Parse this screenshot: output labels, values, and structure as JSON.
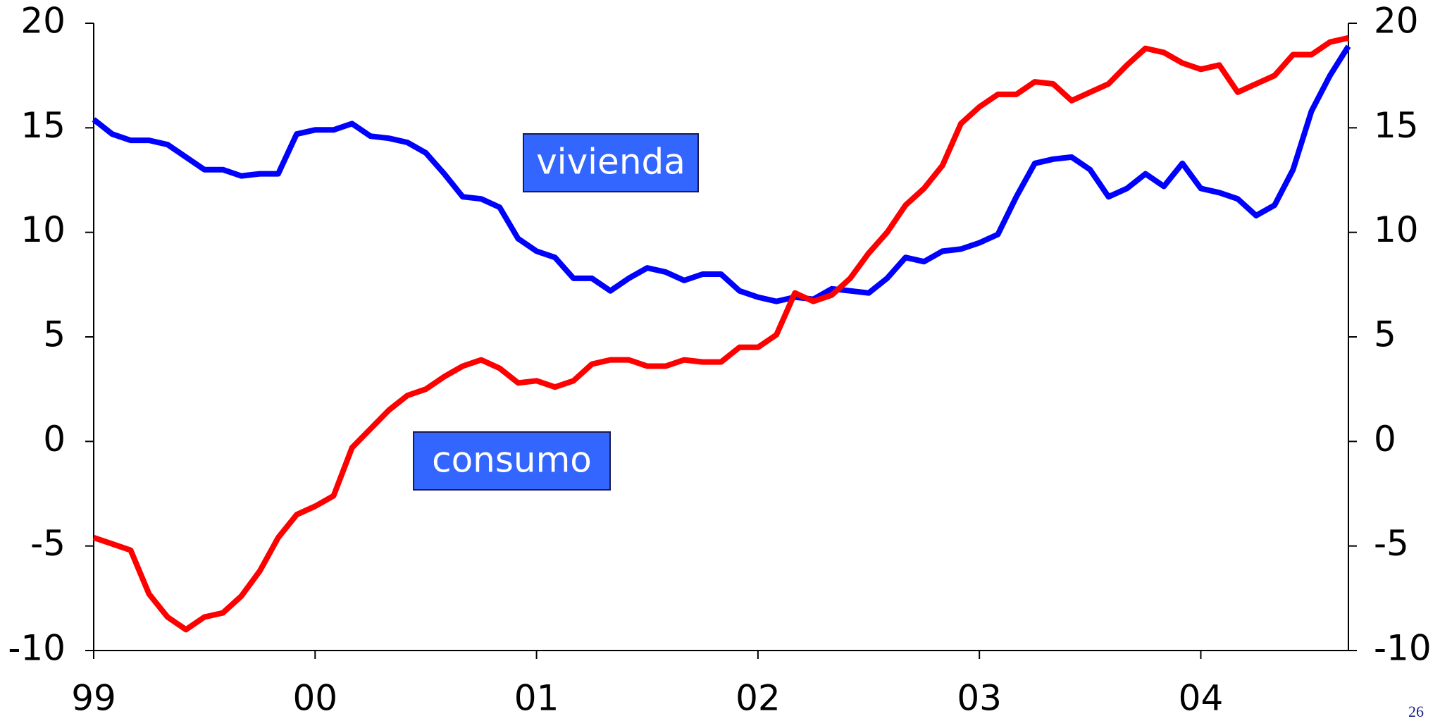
{
  "chart_data": {
    "type": "line",
    "categories": [
      "99",
      null,
      null,
      null,
      null,
      null,
      null,
      null,
      null,
      null,
      null,
      null,
      "00",
      null,
      null,
      null,
      null,
      null,
      null,
      null,
      null,
      null,
      null,
      null,
      "01",
      null,
      null,
      null,
      null,
      null,
      null,
      null,
      null,
      null,
      null,
      null,
      "02",
      null,
      null,
      null,
      null,
      null,
      null,
      null,
      null,
      null,
      null,
      null,
      "03",
      null,
      null,
      null,
      null,
      null,
      null,
      null,
      null,
      null,
      null,
      null,
      "04",
      null,
      null,
      null,
      null,
      null,
      null,
      null,
      null
    ],
    "series": [
      {
        "name": "vivienda",
        "color": "#0000ff",
        "values": [
          15.4,
          14.7,
          14.4,
          14.4,
          14.2,
          13.6,
          13.0,
          13.0,
          12.7,
          12.8,
          12.8,
          14.7,
          14.9,
          14.9,
          15.2,
          14.6,
          14.5,
          14.3,
          13.8,
          12.8,
          11.7,
          11.6,
          11.2,
          9.7,
          9.1,
          8.8,
          7.8,
          7.8,
          7.2,
          7.8,
          8.3,
          8.1,
          7.7,
          8.0,
          8.0,
          7.2,
          6.9,
          6.7,
          6.9,
          6.8,
          7.3,
          7.2,
          7.1,
          7.8,
          8.8,
          8.6,
          9.1,
          9.2,
          9.5,
          9.9,
          11.7,
          13.3,
          13.5,
          13.6,
          13.0,
          11.7,
          12.1,
          12.8,
          12.2,
          13.3,
          12.1,
          11.9,
          11.6,
          10.8,
          11.3,
          13.0,
          15.8,
          17.5,
          18.9
        ]
      },
      {
        "name": "consumo",
        "color": "#ff0000",
        "values": [
          -4.6,
          -4.9,
          -5.2,
          -7.3,
          -8.4,
          -9.0,
          -8.4,
          -8.2,
          -7.4,
          -6.2,
          -4.6,
          -3.5,
          -3.1,
          -2.6,
          -0.3,
          0.6,
          1.5,
          2.2,
          2.5,
          3.1,
          3.6,
          3.9,
          3.5,
          2.8,
          2.9,
          2.6,
          2.9,
          3.7,
          3.9,
          3.9,
          3.6,
          3.6,
          3.9,
          3.8,
          3.8,
          4.5,
          4.5,
          5.1,
          7.1,
          6.7,
          7.0,
          7.8,
          9.0,
          10.0,
          11.3,
          12.1,
          13.2,
          15.2,
          16.0,
          16.6,
          16.6,
          17.2,
          17.1,
          16.3,
          16.7,
          17.1,
          18.0,
          18.8,
          18.6,
          18.1,
          17.8,
          18.0,
          16.7,
          17.1,
          17.5,
          18.5,
          18.5,
          19.1,
          19.3
        ]
      }
    ],
    "ylim": [
      -10,
      20
    ],
    "yticks": [
      -10,
      -5,
      0,
      5,
      10,
      15,
      20
    ],
    "y2lim": [
      -10,
      20
    ],
    "y2ticks": [
      -10,
      -5,
      0,
      5,
      10,
      15,
      20
    ],
    "page_number": "26"
  }
}
